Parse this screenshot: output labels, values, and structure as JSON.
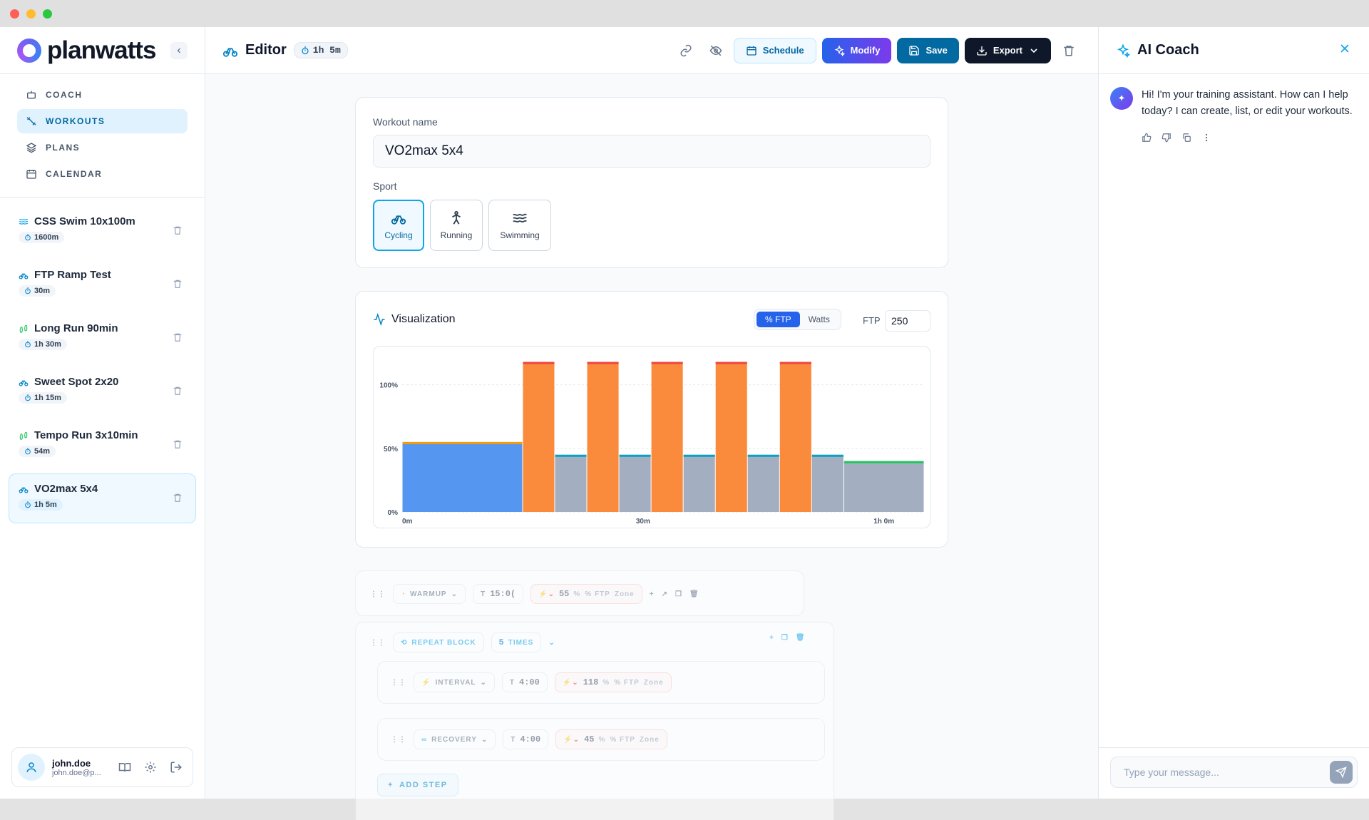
{
  "brand": {
    "name": "planwatts"
  },
  "nav": [
    {
      "label": "COACH",
      "icon": "robot-icon",
      "active": false
    },
    {
      "label": "WORKOUTS",
      "icon": "workouts-icon",
      "active": true
    },
    {
      "label": "PLANS",
      "icon": "layers-icon",
      "active": false
    },
    {
      "label": "CALENDAR",
      "icon": "calendar-icon",
      "active": false
    }
  ],
  "workouts": [
    {
      "title": "CSS Swim 10x100m",
      "duration": "1600m",
      "sport": "swimming"
    },
    {
      "title": "FTP Ramp Test",
      "duration": "30m",
      "sport": "cycling"
    },
    {
      "title": "Long Run 90min",
      "duration": "1h 30m",
      "sport": "running"
    },
    {
      "title": "Sweet Spot 2x20",
      "duration": "1h 15m",
      "sport": "cycling"
    },
    {
      "title": "Tempo Run 3x10min",
      "duration": "54m",
      "sport": "running"
    },
    {
      "title": "VO2max 5x4",
      "duration": "1h 5m",
      "sport": "cycling",
      "active": true
    }
  ],
  "user": {
    "name": "john.doe",
    "email": "john.doe@p..."
  },
  "editor": {
    "title": "Editor",
    "duration": "1h 5m",
    "buttons": {
      "schedule": "Schedule",
      "modify": "Modify",
      "save": "Save",
      "export": "Export"
    },
    "workout_name_label": "Workout name",
    "workout_name": "VO2max 5x4",
    "sport_label": "Sport",
    "sports": [
      "Cycling",
      "Running",
      "Swimming"
    ],
    "selected_sport": "Cycling"
  },
  "viz": {
    "title": "Visualization",
    "toggle": [
      "% FTP",
      "Watts"
    ],
    "toggle_selected": "% FTP",
    "ftp_label": "FTP",
    "ftp_value": "250"
  },
  "chart_data": {
    "type": "bar",
    "x_unit": "minutes",
    "y_unit": "% FTP",
    "ylim": [
      0,
      120
    ],
    "yticks": [
      "0%",
      "50%",
      "100%"
    ],
    "xticks": [
      "0m",
      "30m",
      "1h 0m"
    ],
    "segments": [
      {
        "name": "Warmup",
        "start": 0,
        "duration": 15,
        "value": 55,
        "color": "#5596f0",
        "cap": "#f59e0b"
      },
      {
        "name": "Interval",
        "start": 15,
        "duration": 4,
        "value": 118,
        "color": "#fa8a3c",
        "cap": "#ef4444"
      },
      {
        "name": "Recovery",
        "start": 19,
        "duration": 4,
        "value": 45,
        "color": "#a3aec0",
        "cap": "#06a3c8"
      },
      {
        "name": "Interval",
        "start": 23,
        "duration": 4,
        "value": 118,
        "color": "#fa8a3c",
        "cap": "#ef4444"
      },
      {
        "name": "Recovery",
        "start": 27,
        "duration": 4,
        "value": 45,
        "color": "#a3aec0",
        "cap": "#06a3c8"
      },
      {
        "name": "Interval",
        "start": 31,
        "duration": 4,
        "value": 118,
        "color": "#fa8a3c",
        "cap": "#ef4444"
      },
      {
        "name": "Recovery",
        "start": 35,
        "duration": 4,
        "value": 45,
        "color": "#a3aec0",
        "cap": "#06a3c8"
      },
      {
        "name": "Interval",
        "start": 39,
        "duration": 4,
        "value": 118,
        "color": "#fa8a3c",
        "cap": "#ef4444"
      },
      {
        "name": "Recovery",
        "start": 43,
        "duration": 4,
        "value": 45,
        "color": "#a3aec0",
        "cap": "#06a3c8"
      },
      {
        "name": "Interval",
        "start": 47,
        "duration": 4,
        "value": 118,
        "color": "#fa8a3c",
        "cap": "#ef4444"
      },
      {
        "name": "Recovery",
        "start": 51,
        "duration": 4,
        "value": 45,
        "color": "#a3aec0",
        "cap": "#06a3c8"
      },
      {
        "name": "Cooldown",
        "start": 55,
        "duration": 10,
        "value": 40,
        "color": "#a3aec0",
        "cap": "#22c55e"
      }
    ],
    "total_minutes": 65
  },
  "steps": {
    "warmup": {
      "label": "WARMUP",
      "time": "15:0(",
      "value": "55",
      "unit": "%",
      "mode": "% FTP",
      "zone": "Zone"
    },
    "repeat": {
      "label": "REPEAT BLOCK",
      "count": "5",
      "times_label": "TIMES"
    },
    "interval": {
      "label": "INTERVAL",
      "time": "4:00",
      "value": "118",
      "unit": "%",
      "mode": "% FTP",
      "zone": "Zone"
    },
    "recovery": {
      "label": "RECOVERY",
      "time": "4:00",
      "value": "45",
      "unit": "%",
      "mode": "% FTP",
      "zone": "Zone"
    },
    "add_step": "ADD STEP",
    "t_label": "T"
  },
  "coach": {
    "title": "AI Coach",
    "message": "Hi! I'm your training assistant. How can I help today? I can create, list, or edit your workouts.",
    "placeholder": "Type your message..."
  }
}
